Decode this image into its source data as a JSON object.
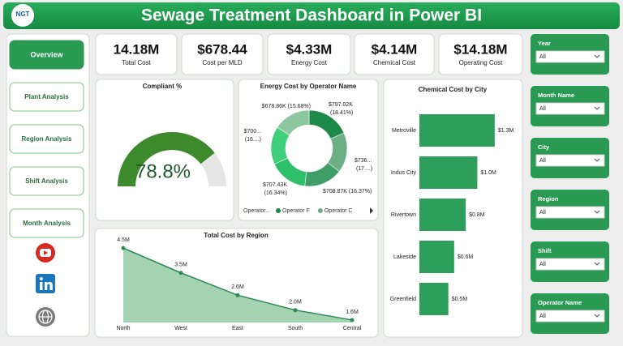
{
  "header": {
    "title": "Sewage Treatment Dashboard in Power BI",
    "logo": "NGT"
  },
  "nav": [
    "Overview",
    "Plant Analysis",
    "Region Analysis",
    "Shift Analysis",
    "Month Analysis"
  ],
  "kpis": [
    {
      "value": "14.18M",
      "label": "Total Cost"
    },
    {
      "value": "$678.44",
      "label": "Cost per MLD"
    },
    {
      "value": "$4.33M",
      "label": "Energy Cost"
    },
    {
      "value": "$4.14M",
      "label": "Chemical Cost"
    },
    {
      "value": "$14.18M",
      "label": "Operating Cost"
    }
  ],
  "filters": [
    {
      "label": "Year",
      "value": "All"
    },
    {
      "label": "Month Name",
      "value": "All"
    },
    {
      "label": "City",
      "value": "All"
    },
    {
      "label": "Region",
      "value": "All"
    },
    {
      "label": "Shift",
      "value": "All"
    },
    {
      "label": "Operator Name",
      "value": "All"
    }
  ],
  "chart_data": [
    {
      "type": "gauge",
      "title": "Compliant %",
      "value": 78.8,
      "value_label": "78.8%",
      "ylim": [
        0,
        100
      ],
      "color": "#3d8a2c",
      "track_color": "#e6e6e6"
    },
    {
      "type": "pie",
      "title": "Energy Cost by Operator Name",
      "donut": true,
      "categories": [
        "Operator F",
        "Operator C",
        null,
        null,
        null,
        null
      ],
      "values": [
        797.02,
        736,
        708.87,
        707.43,
        700,
        678.86
      ],
      "value_labels": [
        "$797.02K (18.41%)",
        "$736... (17....)",
        "$708.87K (16.37%)",
        "$707.43K (16.34%)",
        "$700... (16....)",
        "$678.86K (15.68%)"
      ],
      "colors": [
        "#1e8a4a",
        "#6cae86",
        "#3f9e66",
        "#2fbf6a",
        "#3fcf7a",
        "#8cc7a2"
      ],
      "legend_title": "Operator..."
    },
    {
      "type": "barh",
      "title": "Chemical Cost by City",
      "categories": [
        "Metroville",
        "Indus City",
        "Rivertown",
        "Lakeside",
        "Greenfield"
      ],
      "values": [
        1.3,
        1.0,
        0.8,
        0.6,
        0.5
      ],
      "value_labels": [
        "$1.3M",
        "$1.0M",
        "$0.8M",
        "$0.6M",
        "$0.5M"
      ],
      "xlim": [
        0,
        1.4
      ],
      "color": "#2e9e5b"
    },
    {
      "type": "area",
      "title": "Total Cost by Region",
      "categories": [
        "North",
        "West",
        "East",
        "South",
        "Central"
      ],
      "values": [
        4.5,
        3.5,
        2.6,
        2.0,
        1.6
      ],
      "value_labels": [
        "4.5M",
        "3.5M",
        "2.6M",
        "2.0M",
        "1.6M"
      ],
      "ylim": [
        1.5,
        4.7
      ],
      "color": "#2e8b57",
      "fill": "#a3d3b0"
    }
  ]
}
